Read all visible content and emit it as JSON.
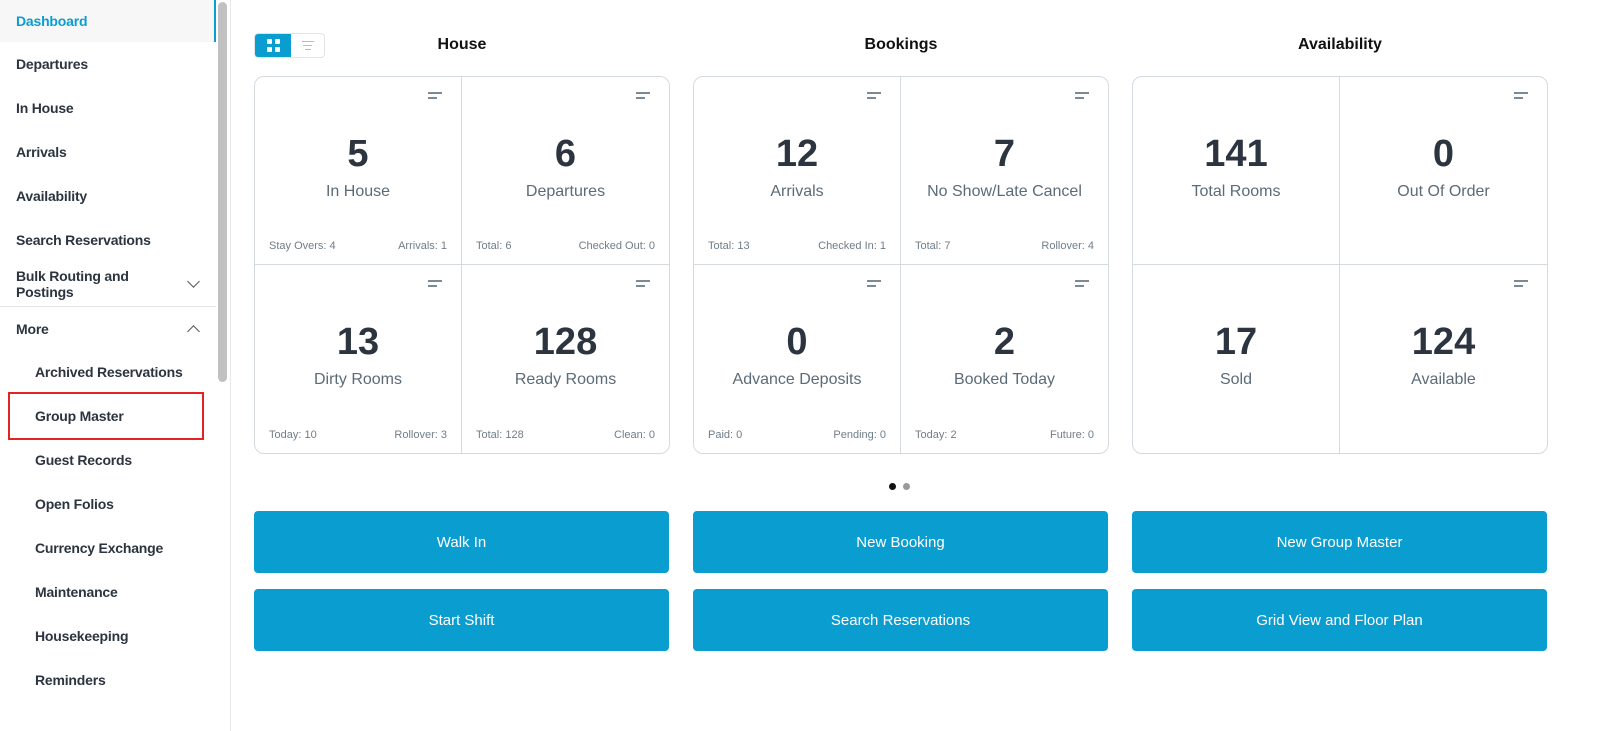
{
  "sidebar": {
    "items": [
      {
        "label": "Dashboard",
        "active": true
      },
      {
        "label": "Departures"
      },
      {
        "label": "In House"
      },
      {
        "label": "Arrivals"
      },
      {
        "label": "Availability"
      },
      {
        "label": "Search Reservations"
      },
      {
        "label": "Bulk Routing and Postings",
        "chevron": "chevron-down-icon"
      },
      {
        "label": "More",
        "chevron": "chevron-up-icon"
      },
      {
        "label": "Archived Reservations",
        "sub": true
      },
      {
        "label": "Group Master",
        "sub": true,
        "highlighted": true
      },
      {
        "label": "Guest Records",
        "sub": true
      },
      {
        "label": "Open Folios",
        "sub": true
      },
      {
        "label": "Currency Exchange",
        "sub": true
      },
      {
        "label": "Maintenance",
        "sub": true
      },
      {
        "label": "Housekeeping",
        "sub": true
      },
      {
        "label": "Reminders",
        "sub": true
      }
    ]
  },
  "view_toggle": {
    "selected": "grid"
  },
  "columns": [
    {
      "title": "House",
      "cells": [
        {
          "value": "5",
          "label": "In House",
          "left": "Stay Overs: 4",
          "right": "Arrivals: 1"
        },
        {
          "value": "6",
          "label": "Departures",
          "left": "Total: 6",
          "right": "Checked Out: 0"
        },
        {
          "value": "13",
          "label": "Dirty Rooms",
          "left": "Today: 10",
          "right": "Rollover: 3"
        },
        {
          "value": "128",
          "label": "Ready Rooms",
          "left": "Total: 128",
          "right": "Clean: 0"
        }
      ]
    },
    {
      "title": "Bookings",
      "cells": [
        {
          "value": "12",
          "label": "Arrivals",
          "left": "Total: 13",
          "right": "Checked In: 1"
        },
        {
          "value": "7",
          "label": "No Show/Late Cancel",
          "left": "Total: 7",
          "right": "Rollover: 4"
        },
        {
          "value": "0",
          "label": "Advance Deposits",
          "left": "Paid: 0",
          "right": "Pending: 0"
        },
        {
          "value": "2",
          "label": "Booked Today",
          "left": "Today: 2",
          "right": "Future: 0"
        }
      ]
    },
    {
      "title": "Availability",
      "cells": [
        {
          "value": "141",
          "label": "Total Rooms",
          "left": "",
          "right": "",
          "filter": false
        },
        {
          "value": "0",
          "label": "Out Of Order",
          "left": "",
          "right": ""
        },
        {
          "value": "17",
          "label": "Sold",
          "left": "",
          "right": "",
          "filter": false
        },
        {
          "value": "124",
          "label": "Available",
          "left": "",
          "right": ""
        }
      ]
    }
  ],
  "pagination": {
    "pages": 2,
    "current": 1
  },
  "buttons": [
    "Walk In",
    "New Booking",
    "New Group Master",
    "Start Shift",
    "Search Reservations",
    "Grid View and Floor Plan"
  ],
  "colors": {
    "accent": "#0a9dcf",
    "highlight_box": "#e02424"
  }
}
